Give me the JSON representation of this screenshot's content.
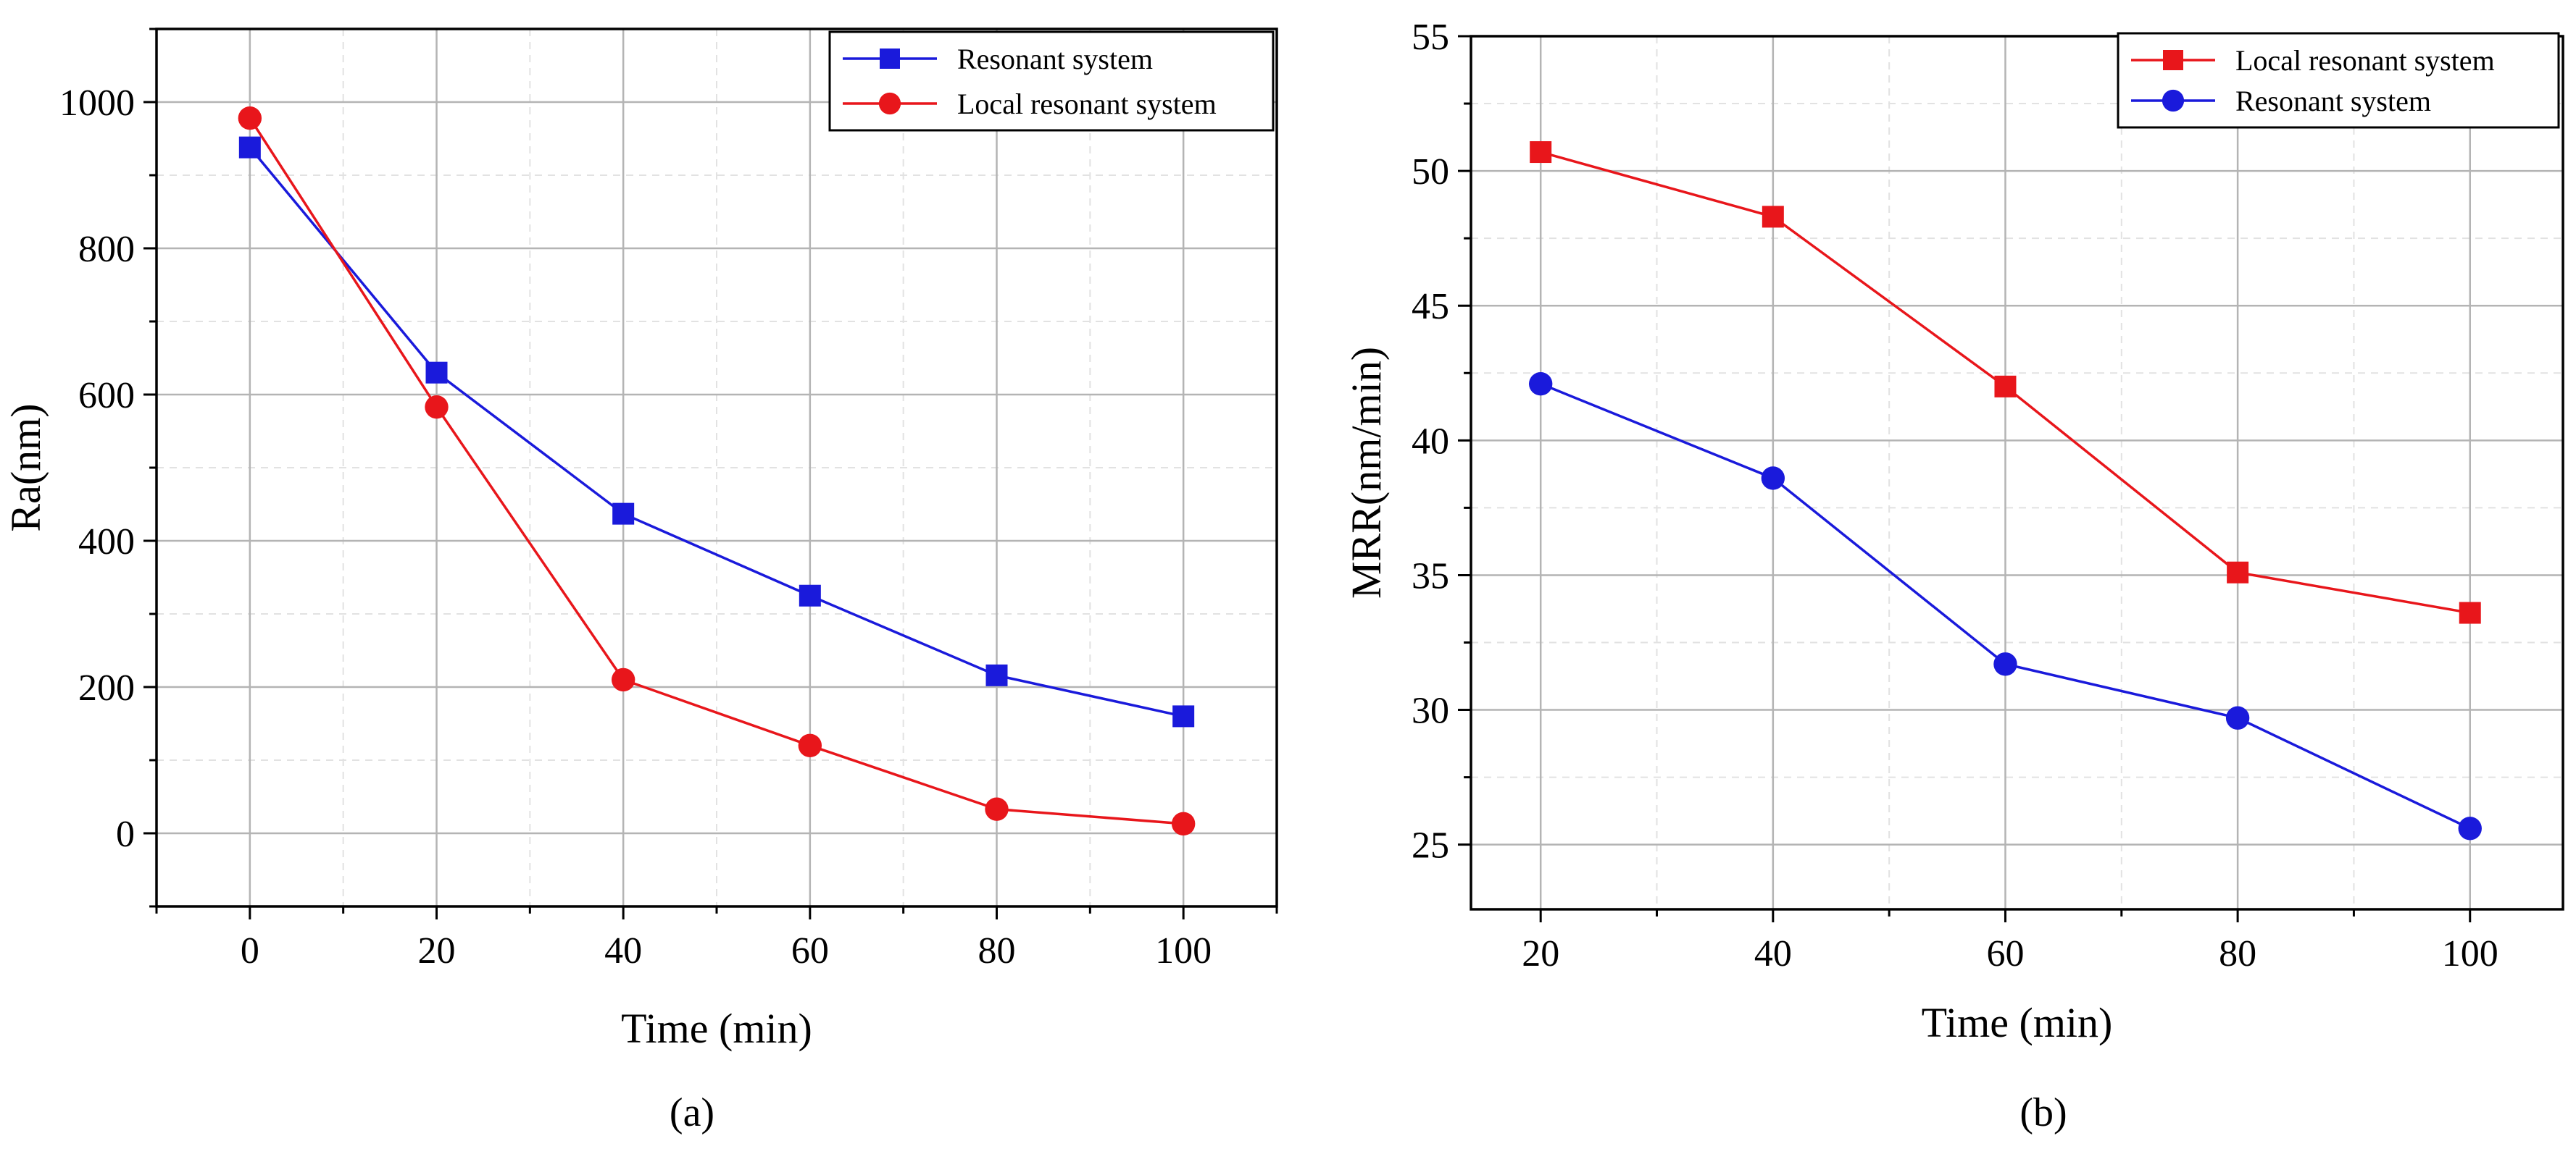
{
  "captions": [
    "(a)",
    "(b)"
  ],
  "colors": {
    "red": "#e8161b",
    "blue": "#1a1adb"
  },
  "chart_data": [
    {
      "type": "line",
      "panel": "(a)",
      "title": "",
      "xlabel": "Time (min)",
      "ylabel": "Ra(nm)",
      "x": [
        0,
        20,
        40,
        60,
        80,
        100
      ],
      "xlim": [
        -10,
        110
      ],
      "ylim": [
        -100,
        1100
      ],
      "xticks": [
        0,
        20,
        40,
        60,
        80,
        100
      ],
      "yticks": [
        0,
        200,
        400,
        600,
        800,
        1000
      ],
      "grid": true,
      "legend_position": "top-right",
      "series": [
        {
          "name": "Resonant system",
          "color": "#1a1adb",
          "marker": "square",
          "values": [
            938,
            630,
            437,
            325,
            216,
            160
          ]
        },
        {
          "name": "Local resonant system",
          "color": "#e8161b",
          "marker": "circle",
          "values": [
            978,
            583,
            210,
            120,
            33,
            13
          ]
        }
      ]
    },
    {
      "type": "line",
      "panel": "(b)",
      "title": "",
      "xlabel": "Time (min)",
      "ylabel": "MRR(nm/min)",
      "x": [
        20,
        40,
        60,
        80,
        100
      ],
      "xlim": [
        14,
        108
      ],
      "ylim": [
        22.6,
        55
      ],
      "xticks": [
        20,
        40,
        60,
        80,
        100
      ],
      "yticks": [
        25,
        30,
        35,
        40,
        45,
        50,
        55
      ],
      "grid": true,
      "legend_position": "top-right",
      "series": [
        {
          "name": "Local resonant system",
          "color": "#e8161b",
          "marker": "square",
          "values": [
            50.7,
            48.3,
            42.0,
            35.1,
            33.6
          ]
        },
        {
          "name": "Resonant system",
          "color": "#1a1adb",
          "marker": "circle",
          "values": [
            42.1,
            38.6,
            31.7,
            29.7,
            25.6
          ]
        }
      ]
    }
  ]
}
